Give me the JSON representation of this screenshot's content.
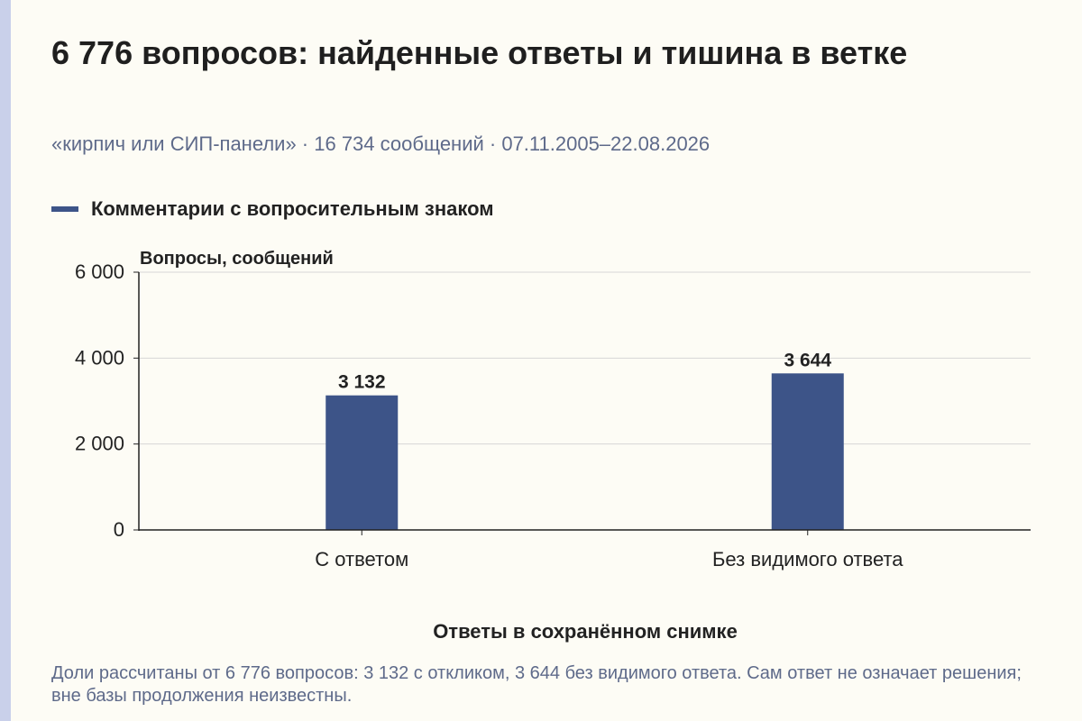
{
  "title": "6 776 вопросов: найденные ответы и тишина в ветке",
  "subtitle": "«кирпич или СИП-панели» · 16 734 сообщений · 07.11.2005–22.08.2026",
  "footnote": "Доли рассчитаны от 6 776 вопросов: 3 132 с откликом, 3 644 без видимого ответа. Сам ответ не означает решения; вне базы продолжения неизвестны.",
  "colors": {
    "bar": "#3d5488",
    "background": "#fdfcf5",
    "accent_strip": "#c9d0ea",
    "muted_text": "#5e6a8a",
    "grid": "#d6d6d6"
  },
  "chart_data": {
    "type": "bar",
    "title": "",
    "legend_position": "top-left",
    "categories": [
      "С ответом",
      "Без видимого ответа"
    ],
    "series": [
      {
        "name": "Комментарии с вопросительным знаком",
        "values": [
          3132,
          3644
        ],
        "value_labels": [
          "3 132",
          "3 644"
        ]
      }
    ],
    "xlabel": "Ответы в сохранённом снимке",
    "ylabel": "Вопросы, сообщений",
    "ylim": [
      0,
      6000
    ],
    "yticks": [
      0,
      2000,
      4000,
      6000
    ],
    "ytick_labels": [
      "0",
      "2 000",
      "4 000",
      "6 000"
    ],
    "grid": true
  }
}
